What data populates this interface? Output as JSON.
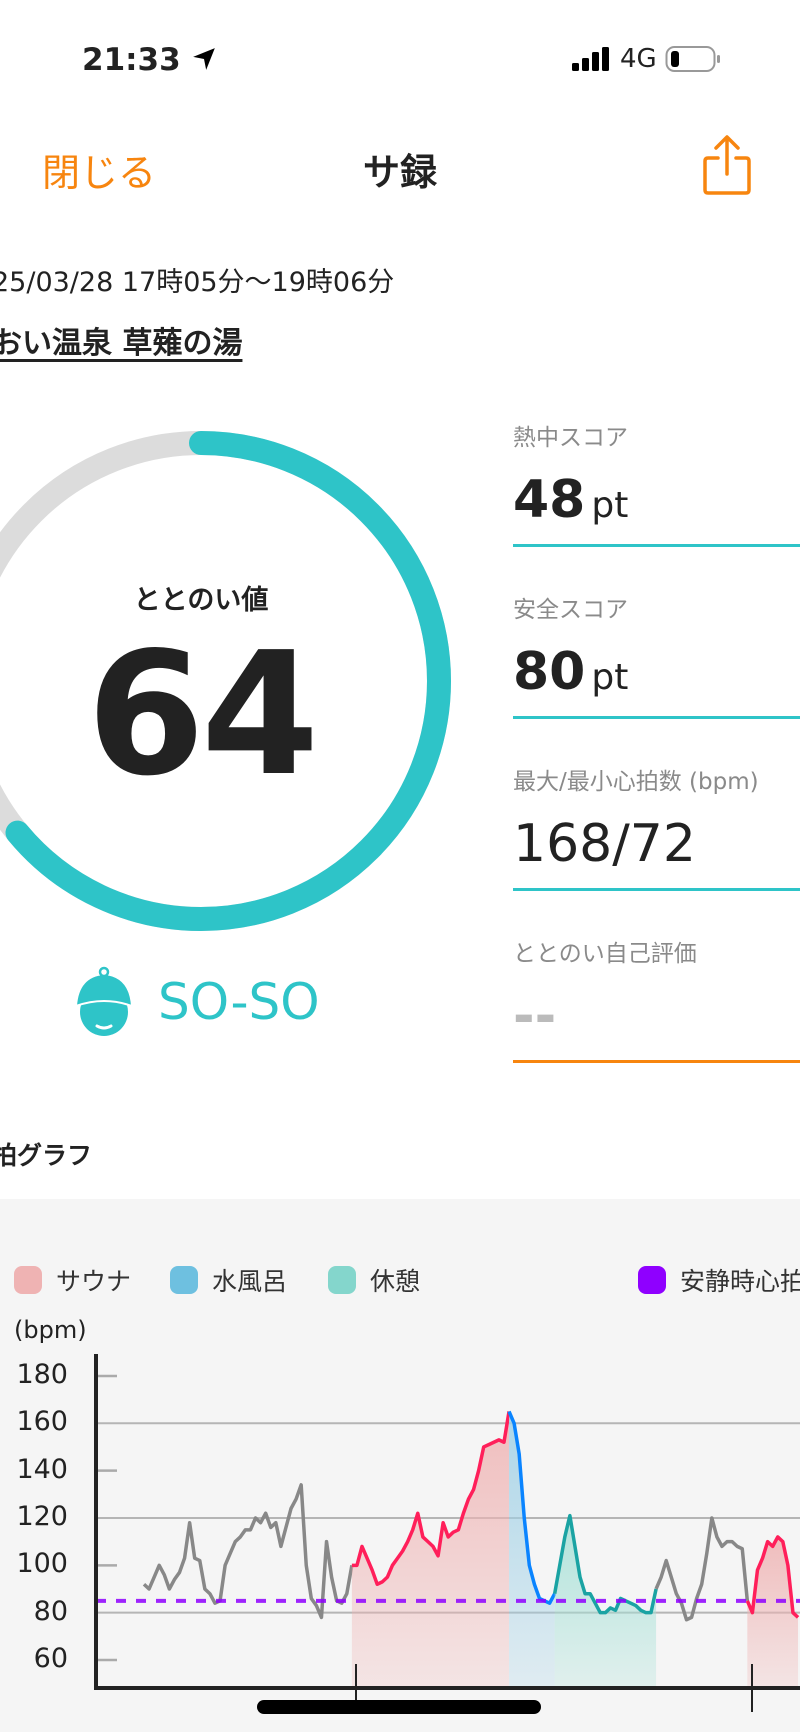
{
  "status_bar": {
    "time": "21:33",
    "network": "4G",
    "location_icon": "location-arrow-icon",
    "battery_level": 0.15
  },
  "nav": {
    "close_label": "閉じる",
    "title": "サ録",
    "share_icon": "share-icon"
  },
  "session": {
    "datetime": "25/03/28 17時05分〜19時06分",
    "venue": "おい温泉 草薙の湯"
  },
  "score": {
    "label": "ととのい値",
    "value": "64",
    "fraction": 0.64,
    "mood": "SO-SO",
    "mood_icon": "sauna-hat-face-icon"
  },
  "stats": [
    {
      "label": "熱中スコア",
      "value": "48",
      "unit": "pt"
    },
    {
      "label": "安全スコア",
      "value": "80",
      "unit": "pt"
    },
    {
      "label": "最大/最小心拍数 (bpm)",
      "value": "168/72",
      "unit": ""
    },
    {
      "label": "ととのい自己評価",
      "value": "--",
      "unit": ""
    }
  ],
  "colors": {
    "accent": "#2ec4c8",
    "orange": "#f7850f",
    "track": "#dcdcdc"
  },
  "graph": {
    "title": "拍グラフ"
  },
  "chart_data": {
    "type": "line",
    "ylabel": "(bpm)",
    "yticks": [
      "180",
      "160",
      "140",
      "120",
      "100",
      "80",
      "60"
    ],
    "ylim": [
      50,
      190
    ],
    "grid": "horizontal at 80, 120, 160",
    "legend": [
      {
        "name": "サウナ",
        "color": "#efb3b3"
      },
      {
        "name": "水風呂",
        "color": "#6ec0e0"
      },
      {
        "name": "休憩",
        "color": "#84d6cc"
      },
      {
        "name": "安静時心拍",
        "color": "#8f00ff"
      }
    ],
    "legend_position": "top",
    "resting_hr": 85,
    "segments": [
      {
        "phase": "other",
        "color": "#888888",
        "values": [
          92,
          90,
          95,
          100,
          96,
          90,
          94,
          97,
          103,
          118,
          103,
          102,
          90,
          88,
          84,
          85,
          100,
          105,
          110,
          112,
          115,
          115,
          120,
          118,
          122,
          116,
          118,
          108,
          116,
          124,
          128,
          134,
          100,
          86,
          83,
          78,
          110,
          95,
          85,
          84,
          88,
          100
        ]
      },
      {
        "phase": "サウナ",
        "color": "#ff1f5a",
        "fill": "#efb3b3",
        "values": [
          100,
          108,
          103,
          98,
          92,
          93,
          95,
          100,
          103,
          106,
          110,
          115,
          122,
          112,
          110,
          108,
          104,
          118,
          112,
          114,
          115,
          122,
          128,
          132,
          140,
          150,
          151,
          152,
          153,
          152,
          165
        ]
      },
      {
        "phase": "水風呂",
        "color": "#0a84ff",
        "fill": "#9fd0e6",
        "values": [
          160,
          147,
          120,
          100,
          92,
          86,
          85,
          84,
          88
        ]
      },
      {
        "phase": "休憩",
        "color": "#1aa3a3",
        "fill": "#a4e0d6",
        "values": [
          100,
          112,
          121,
          108,
          95,
          88,
          88,
          84,
          80,
          80,
          82,
          81,
          86,
          85,
          84,
          83,
          81,
          80,
          80,
          90
        ]
      },
      {
        "phase": "other",
        "color": "#888888",
        "values": [
          95,
          102,
          95,
          88,
          84,
          77,
          78,
          86,
          92,
          105,
          120,
          112,
          108,
          110,
          110,
          108,
          107,
          85
        ]
      },
      {
        "phase": "サウナ",
        "color": "#ff1f5a",
        "fill": "#efb3b3",
        "values": [
          80,
          98,
          103,
          110,
          108,
          112,
          110,
          100,
          80,
          78
        ]
      }
    ]
  }
}
